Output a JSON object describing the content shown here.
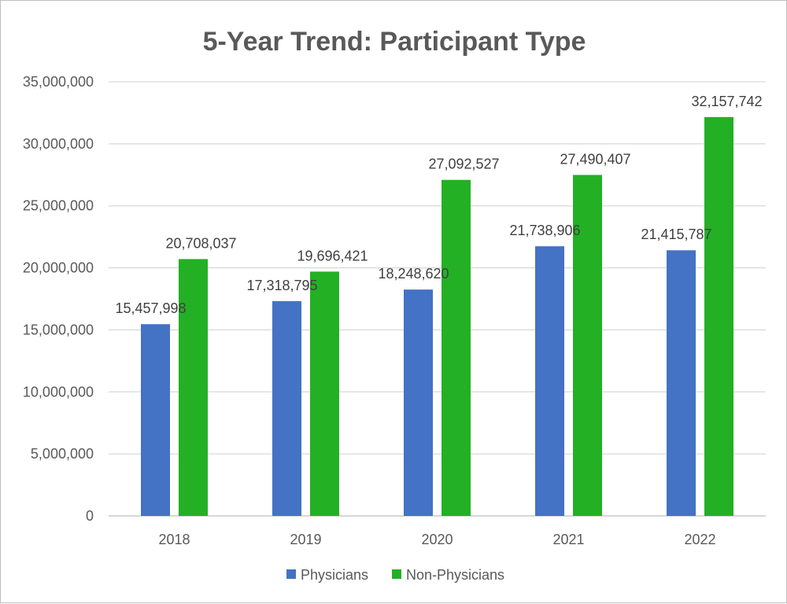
{
  "chart_data": {
    "type": "bar",
    "title": "5-Year Trend: Participant Type",
    "xlabel": "",
    "ylabel": "",
    "categories": [
      "2018",
      "2019",
      "2020",
      "2021",
      "2022"
    ],
    "ylim": [
      0,
      35000000
    ],
    "yticks": [
      0,
      5000000,
      10000000,
      15000000,
      20000000,
      25000000,
      30000000,
      35000000
    ],
    "grid": true,
    "legend_position": "bottom",
    "series": [
      {
        "name": "Physicians",
        "color": "#4472C4",
        "values": [
          15457998,
          17318795,
          18248620,
          21738906,
          21415787
        ],
        "labels": [
          "15,457,998",
          "17,318,795",
          "18,248,620",
          "21,738,906",
          "21,415,787"
        ]
      },
      {
        "name": "Non-Physicians",
        "color": "#23B024",
        "values": [
          20708037,
          19696421,
          27092527,
          27490407,
          32157742
        ],
        "labels": [
          "20,708,037",
          "19,696,421",
          "27,092,527",
          "27,490,407",
          "32,157,742"
        ]
      }
    ]
  }
}
